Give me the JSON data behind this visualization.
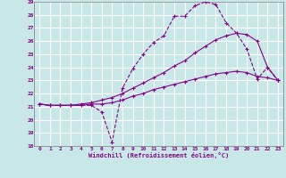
{
  "xlabel": "Windchill (Refroidissement éolien,°C)",
  "bg_color": "#c8e8e8",
  "grid_color": "#ffffff",
  "line_color": "#880088",
  "xlim": [
    -0.5,
    23.5
  ],
  "ylim": [
    18,
    29
  ],
  "xticks": [
    0,
    1,
    2,
    3,
    4,
    5,
    6,
    7,
    8,
    9,
    10,
    11,
    12,
    13,
    14,
    15,
    16,
    17,
    18,
    19,
    20,
    21,
    22,
    23
  ],
  "yticks": [
    18,
    19,
    20,
    21,
    22,
    23,
    24,
    25,
    26,
    27,
    28,
    29
  ],
  "curve1_x": [
    0,
    1,
    2,
    3,
    4,
    5,
    6,
    7,
    8,
    9,
    10,
    11,
    12,
    13,
    14,
    15,
    16,
    17,
    18,
    19,
    20,
    21,
    22,
    23
  ],
  "curve1_y": [
    21.2,
    21.1,
    21.1,
    21.1,
    21.1,
    21.1,
    20.6,
    18.3,
    22.4,
    23.9,
    25.0,
    25.9,
    26.4,
    27.9,
    27.9,
    28.7,
    29.0,
    28.8,
    27.4,
    26.6,
    25.4,
    23.1,
    24.0,
    23.0
  ],
  "curve2_x": [
    0,
    1,
    2,
    3,
    4,
    5,
    6,
    7,
    8,
    9,
    10,
    11,
    12,
    13,
    14,
    15,
    16,
    17,
    18,
    19,
    20,
    21,
    22,
    23
  ],
  "curve2_y": [
    21.2,
    21.1,
    21.1,
    21.1,
    21.2,
    21.3,
    21.5,
    21.7,
    22.0,
    22.4,
    22.8,
    23.2,
    23.6,
    24.1,
    24.5,
    25.1,
    25.6,
    26.1,
    26.4,
    26.6,
    26.5,
    26.0,
    24.0,
    23.0
  ],
  "curve3_x": [
    0,
    1,
    2,
    3,
    4,
    5,
    6,
    7,
    8,
    9,
    10,
    11,
    12,
    13,
    14,
    15,
    16,
    17,
    18,
    19,
    20,
    21,
    22,
    23
  ],
  "curve3_y": [
    21.2,
    21.1,
    21.1,
    21.1,
    21.1,
    21.2,
    21.2,
    21.3,
    21.5,
    21.8,
    22.0,
    22.3,
    22.5,
    22.7,
    22.9,
    23.1,
    23.3,
    23.5,
    23.6,
    23.7,
    23.6,
    23.3,
    23.2,
    23.0
  ]
}
